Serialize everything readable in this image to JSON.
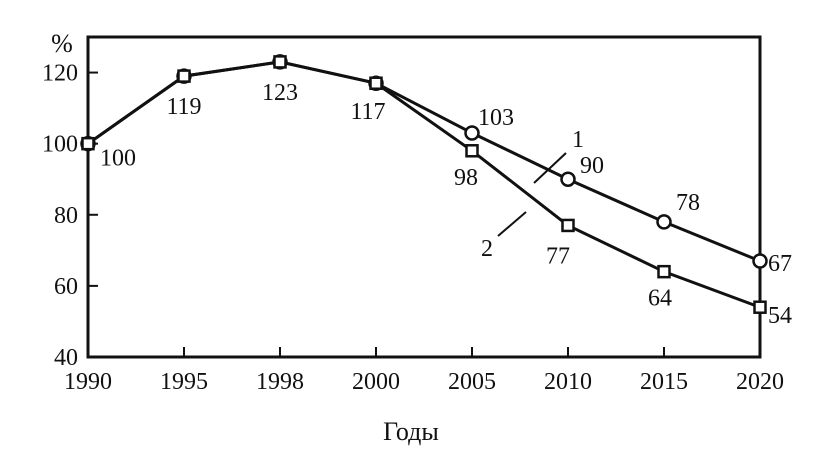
{
  "chart_data": {
    "type": "line",
    "title": "",
    "xlabel": "Годы",
    "ylabel": "%",
    "x": [
      "1990",
      "1995",
      "1998",
      "2000",
      "2005",
      "2010",
      "2015",
      "2020"
    ],
    "ylim": [
      40,
      130
    ],
    "yticks": [
      40,
      60,
      80,
      100,
      120
    ],
    "grid": false,
    "series": [
      {
        "name": "1",
        "marker": "circle",
        "values": [
          100,
          119,
          123,
          117,
          103,
          90,
          78,
          67
        ],
        "labels": [
          "100",
          "119",
          "123",
          "117",
          "103",
          "90",
          "78",
          "67"
        ]
      },
      {
        "name": "2",
        "marker": "square",
        "values": [
          100,
          119,
          123,
          117,
          98,
          77,
          64,
          54
        ],
        "labels": [
          "",
          "",
          "",
          "",
          "98",
          "77",
          "64",
          "54"
        ]
      }
    ]
  }
}
